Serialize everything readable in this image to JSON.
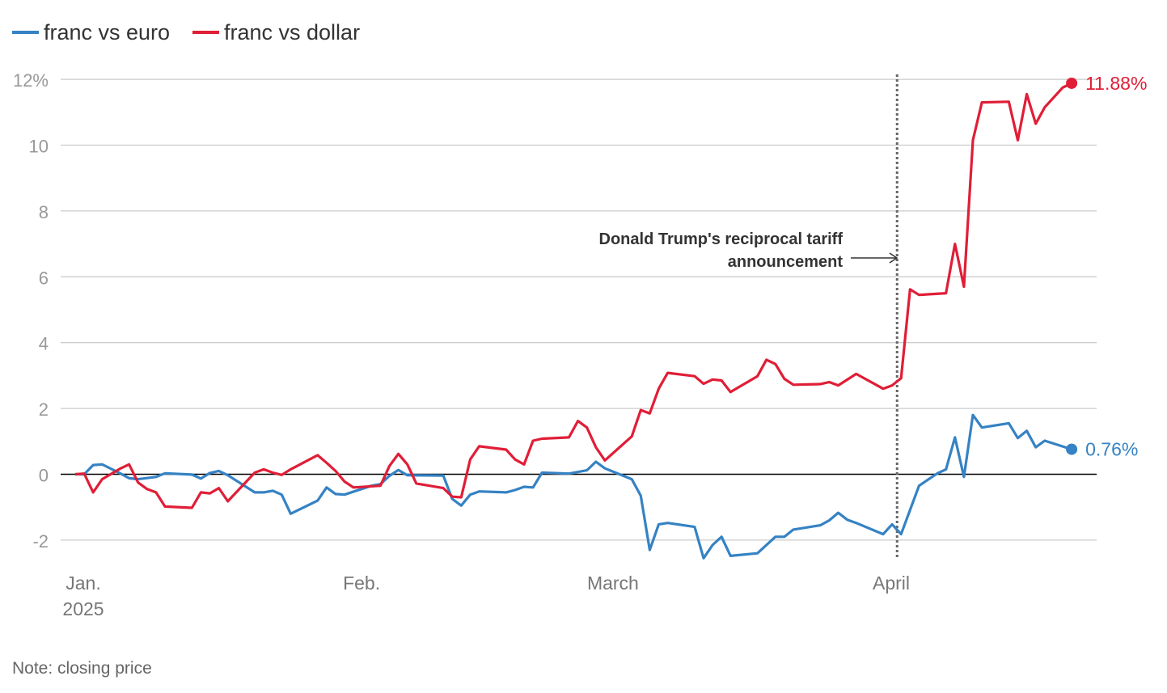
{
  "chart_data": {
    "type": "line",
    "legend": [
      "franc vs euro",
      "franc vs dollar"
    ],
    "legend_position": "top-left",
    "yticks": [
      "-2",
      "0",
      "2",
      "4",
      "6",
      "8",
      "10",
      "12%"
    ],
    "ylim": [
      -2.8,
      12.2
    ],
    "xlim": [
      -1,
      112
    ],
    "xticks": [
      {
        "x": 0,
        "line1": "Jan.",
        "line2": "2025"
      },
      {
        "x": 31,
        "line1": "Feb.",
        "line2": ""
      },
      {
        "x": 59,
        "line1": "March",
        "line2": ""
      },
      {
        "x": 90,
        "line1": "April",
        "line2": ""
      }
    ],
    "grid": true,
    "colors": {
      "euro": "#3582c4",
      "dollar": "#e01e37",
      "grid": "#cccccc",
      "zero": "#000000",
      "marker": "#666666"
    },
    "annotation": {
      "x": 92.5,
      "lines": [
        "Donald Trump's reciprocal tariff",
        "announcement"
      ]
    },
    "series": [
      {
        "name": "franc vs euro",
        "end_label": "0.76%",
        "points": [
          [
            0,
            0
          ],
          [
            1,
            0
          ],
          [
            2,
            0.28
          ],
          [
            3,
            0.3
          ],
          [
            5,
            0.03
          ],
          [
            6,
            -0.12
          ],
          [
            7,
            -0.15
          ],
          [
            9,
            -0.08
          ],
          [
            10,
            0.03
          ],
          [
            13,
            -0.01
          ],
          [
            14,
            -0.13
          ],
          [
            15,
            0.04
          ],
          [
            16,
            0.1
          ],
          [
            17,
            -0.03
          ],
          [
            20,
            -0.55
          ],
          [
            21,
            -0.55
          ],
          [
            22,
            -0.5
          ],
          [
            23,
            -0.62
          ],
          [
            24,
            -1.2
          ],
          [
            27,
            -0.8
          ],
          [
            28,
            -0.4
          ],
          [
            29,
            -0.6
          ],
          [
            30,
            -0.62
          ],
          [
            33,
            -0.35
          ],
          [
            34,
            -0.3
          ],
          [
            35,
            -0.05
          ],
          [
            36,
            0.13
          ],
          [
            37,
            -0.03
          ],
          [
            41,
            -0.04
          ],
          [
            42,
            -0.75
          ],
          [
            43,
            -0.95
          ],
          [
            44,
            -0.62
          ],
          [
            45,
            -0.52
          ],
          [
            48,
            -0.55
          ],
          [
            49,
            -0.48
          ],
          [
            50,
            -0.38
          ],
          [
            51,
            -0.4
          ],
          [
            52,
            0.05
          ],
          [
            55,
            0.02
          ],
          [
            57,
            0.12
          ],
          [
            58,
            0.38
          ],
          [
            59,
            0.18
          ],
          [
            62,
            -0.15
          ],
          [
            63,
            -0.65
          ],
          [
            64,
            -2.3
          ],
          [
            65,
            -1.52
          ],
          [
            66,
            -1.48
          ],
          [
            69,
            -1.6
          ],
          [
            70,
            -2.55
          ],
          [
            71,
            -2.15
          ],
          [
            72,
            -1.9
          ],
          [
            73,
            -2.48
          ],
          [
            76,
            -2.4
          ],
          [
            78,
            -1.9
          ],
          [
            79,
            -1.9
          ],
          [
            80,
            -1.68
          ],
          [
            83,
            -1.55
          ],
          [
            84,
            -1.4
          ],
          [
            85,
            -1.17
          ],
          [
            86,
            -1.38
          ],
          [
            87,
            -1.48
          ],
          [
            90,
            -1.82
          ],
          [
            91,
            -1.52
          ],
          [
            92,
            -1.82
          ],
          [
            94,
            -0.35
          ],
          [
            96,
            0.02
          ],
          [
            97,
            0.15
          ],
          [
            98,
            1.12
          ],
          [
            99,
            -0.08
          ],
          [
            100,
            1.8
          ],
          [
            101,
            1.42
          ],
          [
            104,
            1.55
          ],
          [
            105,
            1.1
          ],
          [
            106,
            1.32
          ],
          [
            107,
            0.82
          ],
          [
            108,
            1.02
          ],
          [
            111,
            0.76
          ]
        ]
      },
      {
        "name": "franc vs dollar",
        "end_label": "11.88%",
        "points": [
          [
            0,
            0
          ],
          [
            1,
            0.02
          ],
          [
            2,
            -0.55
          ],
          [
            3,
            -0.15
          ],
          [
            5,
            0.17
          ],
          [
            6,
            0.3
          ],
          [
            7,
            -0.25
          ],
          [
            8,
            -0.45
          ],
          [
            9,
            -0.55
          ],
          [
            10,
            -0.98
          ],
          [
            13,
            -1.02
          ],
          [
            14,
            -0.55
          ],
          [
            15,
            -0.58
          ],
          [
            16,
            -0.42
          ],
          [
            17,
            -0.82
          ],
          [
            20,
            0.05
          ],
          [
            21,
            0.15
          ],
          [
            22,
            0.05
          ],
          [
            23,
            -0.02
          ],
          [
            24,
            0.15
          ],
          [
            27,
            0.58
          ],
          [
            28,
            0.35
          ],
          [
            29,
            0.1
          ],
          [
            30,
            -0.22
          ],
          [
            31,
            -0.4
          ],
          [
            34,
            -0.35
          ],
          [
            35,
            0.25
          ],
          [
            36,
            0.62
          ],
          [
            37,
            0.3
          ],
          [
            38,
            -0.28
          ],
          [
            41,
            -0.42
          ],
          [
            42,
            -0.68
          ],
          [
            43,
            -0.7
          ],
          [
            44,
            0.45
          ],
          [
            45,
            0.85
          ],
          [
            48,
            0.75
          ],
          [
            49,
            0.45
          ],
          [
            50,
            0.3
          ],
          [
            51,
            1.02
          ],
          [
            52,
            1.08
          ],
          [
            55,
            1.12
          ],
          [
            56,
            1.62
          ],
          [
            57,
            1.42
          ],
          [
            58,
            0.82
          ],
          [
            59,
            0.42
          ],
          [
            62,
            1.15
          ],
          [
            63,
            1.95
          ],
          [
            64,
            1.85
          ],
          [
            65,
            2.6
          ],
          [
            66,
            3.08
          ],
          [
            69,
            2.98
          ],
          [
            70,
            2.75
          ],
          [
            71,
            2.88
          ],
          [
            72,
            2.85
          ],
          [
            73,
            2.5
          ],
          [
            76,
            2.98
          ],
          [
            77,
            3.48
          ],
          [
            78,
            3.35
          ],
          [
            79,
            2.9
          ],
          [
            80,
            2.72
          ],
          [
            83,
            2.74
          ],
          [
            84,
            2.8
          ],
          [
            85,
            2.7
          ],
          [
            87,
            3.05
          ],
          [
            90,
            2.6
          ],
          [
            91,
            2.7
          ],
          [
            92,
            2.92
          ],
          [
            93,
            5.62
          ],
          [
            94,
            5.45
          ],
          [
            97,
            5.5
          ],
          [
            98,
            7.0
          ],
          [
            99,
            5.7
          ],
          [
            100,
            10.15
          ],
          [
            101,
            11.3
          ],
          [
            104,
            11.32
          ],
          [
            105,
            10.15
          ],
          [
            106,
            11.55
          ],
          [
            107,
            10.65
          ],
          [
            108,
            11.15
          ],
          [
            110,
            11.75
          ],
          [
            111,
            11.88
          ]
        ]
      }
    ],
    "note": "Note: closing price"
  }
}
